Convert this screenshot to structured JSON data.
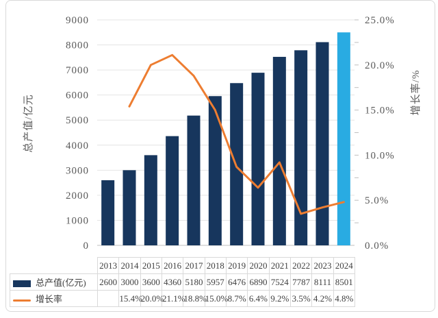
{
  "colors": {
    "bar": "#17365D",
    "bar_highlight": "#29ABE2",
    "line": "#ED7D31",
    "axis_text": "#595959",
    "table_text": "#404040",
    "gridline": "#E4E4E4",
    "axis_line": "#BFBFBF",
    "table_border": "#D9D9D9",
    "frame_border": "#D9D9D9"
  },
  "chart_data": {
    "type": "combo-bar-line",
    "categories": [
      "2013",
      "2014",
      "2015",
      "2016",
      "2017",
      "2018",
      "2019",
      "2020",
      "2021",
      "2022",
      "2023",
      "2024"
    ],
    "series": [
      {
        "name": "总产值(亿元)",
        "type": "bar",
        "axis": "left",
        "values": [
          2600,
          3000,
          3600,
          4360,
          5180,
          5957,
          6476,
          6890,
          7524,
          7787,
          8111,
          8501
        ],
        "display": [
          "2600",
          "3000",
          "3600",
          "4360",
          "5180",
          "5957",
          "6476",
          "6890",
          "7524",
          "7787",
          "8111",
          "8501"
        ],
        "color": "#17365D",
        "highlight_last_bar_color": "#29ABE2"
      },
      {
        "name": "增长率",
        "type": "line",
        "axis": "right",
        "values": [
          null,
          15.4,
          20.0,
          21.1,
          18.8,
          15.0,
          8.7,
          6.4,
          9.2,
          3.5,
          4.2,
          4.8
        ],
        "display": [
          "",
          "15.4%",
          "20.0%",
          "21.1%",
          "18.8%",
          "15.0%",
          "8.7%",
          "6.4%",
          "9.2%",
          "3.5%",
          "4.2%",
          "4.8%"
        ],
        "color": "#ED7D31"
      }
    ],
    "left_axis": {
      "title": "总产值/亿元",
      "min": 0,
      "max": 9000,
      "step": 1000,
      "ticks": [
        "9000",
        "8000",
        "7000",
        "6000",
        "5000",
        "4000",
        "3000",
        "2000",
        "1000",
        "0"
      ]
    },
    "right_axis": {
      "title": "增长率/%",
      "min": 0,
      "max": 25,
      "step": 5,
      "ticks": [
        "25.0%",
        "20.0%",
        "15.0%",
        "10.0%",
        "5.0%",
        "0.0%"
      ]
    },
    "grid": true,
    "legend_position": "data-table-left"
  }
}
